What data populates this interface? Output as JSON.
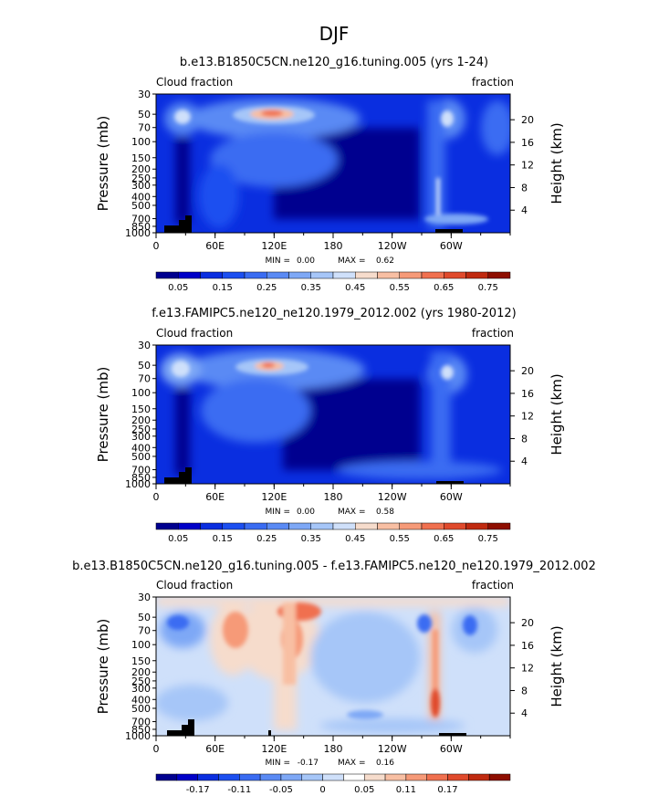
{
  "page_title": "DJF",
  "chart_data": [
    {
      "type": "heatmap",
      "title": "b.e13.B1850C5CN.ne120_g16.tuning.005 (yrs 1-24)",
      "left_label": "Cloud fraction",
      "right_label": "fraction",
      "ylabel": "Pressure (mb)",
      "ylabel_right": "Height (km)",
      "x_ticks": [
        "0",
        "60E",
        "120E",
        "180",
        "120W",
        "60W"
      ],
      "y_ticks": [
        "30",
        "50",
        "70",
        "100",
        "150",
        "200",
        "250",
        "300",
        "400",
        "500",
        "700",
        "850",
        "1000"
      ],
      "height_ticks": [
        "20",
        "16",
        "12",
        "8",
        "4"
      ],
      "min_label": "MIN =",
      "min": "0.00",
      "max_label": "MAX =",
      "max": "0.62",
      "colorbar": [
        "#00008f",
        "#0000c8",
        "#0a2ee0",
        "#1c4ff0",
        "#3a6cf2",
        "#5a8af4",
        "#7ea8f6",
        "#a6c6f8",
        "#cfe0fa",
        "#f6dccc",
        "#f8bfa3",
        "#f69a78",
        "#f0704f",
        "#e04a2c",
        "#c02a10",
        "#8e0e00"
      ],
      "colorbar_labels": [
        "0.05",
        "0.15",
        "0.25",
        "0.35",
        "0.45",
        "0.55",
        "0.65",
        "0.75"
      ]
    },
    {
      "type": "heatmap",
      "title": "f.e13.FAMIPC5.ne120_ne120.1979_2012.002 (yrs 1980-2012)",
      "left_label": "Cloud fraction",
      "right_label": "fraction",
      "ylabel": "Pressure (mb)",
      "ylabel_right": "Height (km)",
      "x_ticks": [
        "0",
        "60E",
        "120E",
        "180",
        "120W",
        "60W"
      ],
      "y_ticks": [
        "30",
        "50",
        "70",
        "100",
        "150",
        "200",
        "250",
        "300",
        "400",
        "500",
        "700",
        "850",
        "1000"
      ],
      "height_ticks": [
        "20",
        "16",
        "12",
        "8",
        "4"
      ],
      "min_label": "MIN =",
      "min": "0.00",
      "max_label": "MAX =",
      "max": "0.58",
      "colorbar": [
        "#00008f",
        "#0000c8",
        "#0a2ee0",
        "#1c4ff0",
        "#3a6cf2",
        "#5a8af4",
        "#7ea8f6",
        "#a6c6f8",
        "#cfe0fa",
        "#f6dccc",
        "#f8bfa3",
        "#f69a78",
        "#f0704f",
        "#e04a2c",
        "#c02a10",
        "#8e0e00"
      ],
      "colorbar_labels": [
        "0.05",
        "0.15",
        "0.25",
        "0.35",
        "0.45",
        "0.55",
        "0.65",
        "0.75"
      ]
    },
    {
      "type": "heatmap",
      "title": "b.e13.B1850C5CN.ne120_g16.tuning.005 - f.e13.FAMIPC5.ne120_ne120.1979_2012.002",
      "left_label": "Cloud fraction",
      "right_label": "fraction",
      "ylabel": "Pressure (mb)",
      "ylabel_right": "Height (km)",
      "x_ticks": [
        "0",
        "60E",
        "120E",
        "180",
        "120W",
        "60W"
      ],
      "y_ticks": [
        "30",
        "50",
        "70",
        "100",
        "150",
        "200",
        "250",
        "300",
        "400",
        "500",
        "700",
        "850",
        "1000"
      ],
      "height_ticks": [
        "20",
        "16",
        "12",
        "8",
        "4"
      ],
      "min_label": "MIN =",
      "min": "-0.17",
      "max_label": "MAX =",
      "max": "0.16",
      "colorbar": [
        "#00008f",
        "#0000c8",
        "#0a2ee0",
        "#1c4ff0",
        "#3a6cf2",
        "#5a8af4",
        "#7ea8f6",
        "#a6c6f8",
        "#cfe0fa",
        "#ffffff",
        "#f6dccc",
        "#f8bfa3",
        "#f69a78",
        "#f0704f",
        "#e04a2c",
        "#c02a10",
        "#8e0e00"
      ],
      "colorbar_labels": [
        "-0.17",
        "-0.11",
        "-0.05",
        "0",
        "0.05",
        "0.11",
        "0.17"
      ]
    }
  ]
}
